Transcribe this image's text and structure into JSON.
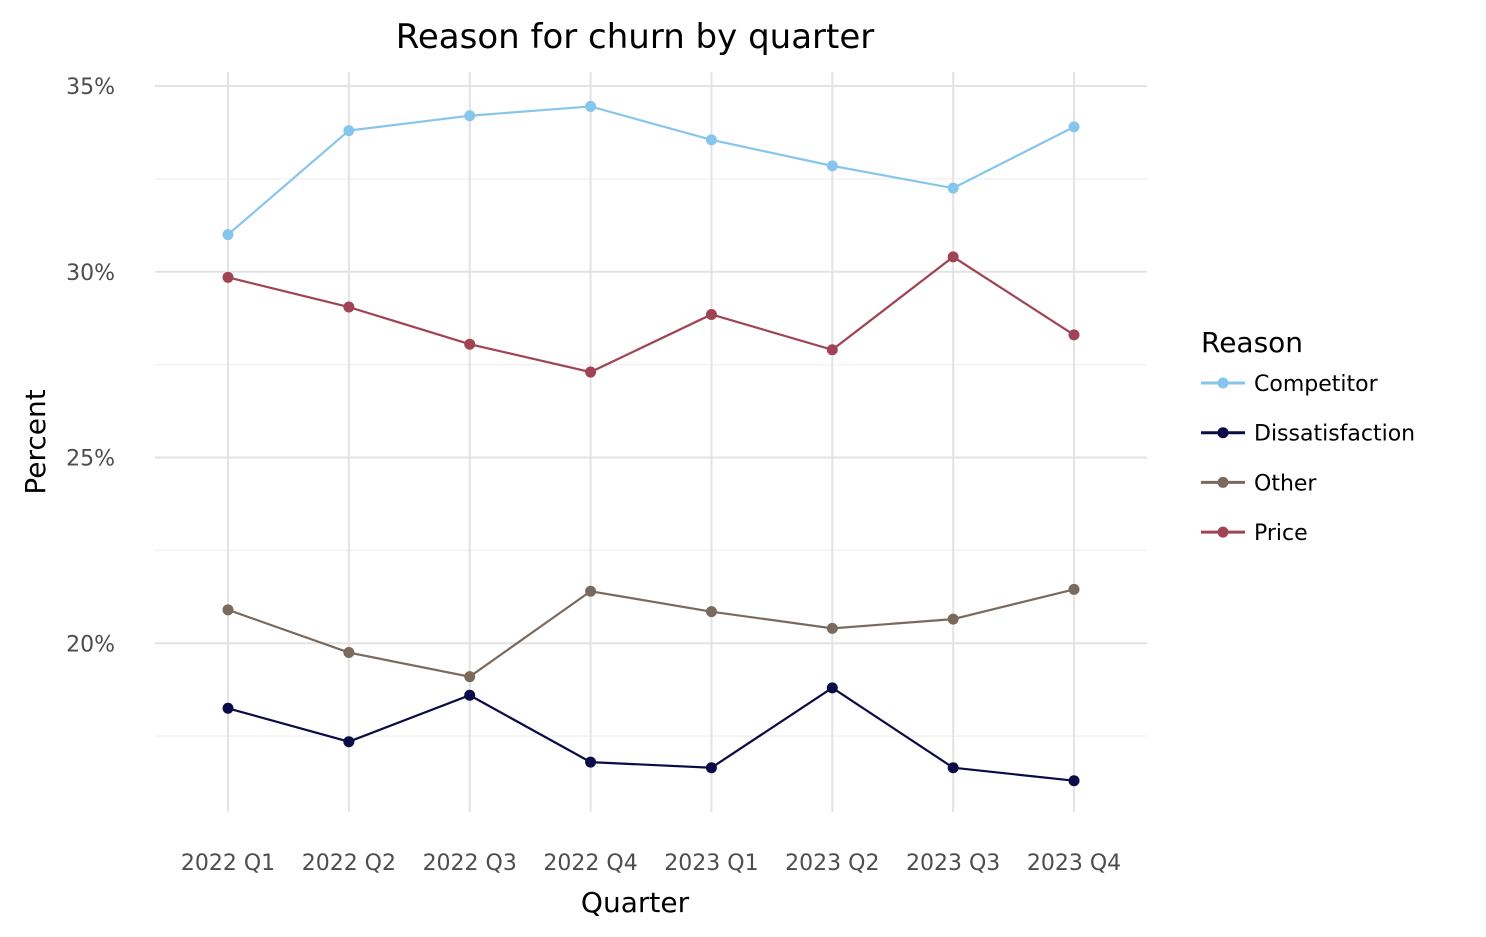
{
  "chart_data": {
    "type": "line",
    "title": "Reason for churn by quarter",
    "xlabel": "Quarter",
    "ylabel": "Percent",
    "categories": [
      "2022 Q1",
      "2022 Q2",
      "2022 Q3",
      "2022 Q4",
      "2023 Q1",
      "2023 Q2",
      "2023 Q3",
      "2023 Q4"
    ],
    "y_ticks": [
      20,
      25,
      30,
      35
    ],
    "y_tick_labels": [
      "20%",
      "25%",
      "30%",
      "35%"
    ],
    "ylim": [
      15.2,
      35.35
    ],
    "grid": true,
    "legend": {
      "title": "Reason",
      "placement": "right"
    },
    "series": [
      {
        "name": "Competitor",
        "color": "#87c6ec",
        "values": [
          31.0,
          33.8,
          34.2,
          34.45,
          33.55,
          32.85,
          32.25,
          33.9
        ]
      },
      {
        "name": "Dissatisfaction",
        "color": "#0b0b45",
        "values": [
          18.25,
          17.35,
          18.6,
          16.8,
          16.65,
          18.8,
          16.65,
          16.3
        ]
      },
      {
        "name": "Other",
        "color": "#7a6a5d",
        "values": [
          20.9,
          19.75,
          19.1,
          21.4,
          20.85,
          20.4,
          20.65,
          21.45
        ]
      },
      {
        "name": "Price",
        "color": "#a04455",
        "values": [
          29.85,
          29.05,
          28.05,
          27.3,
          28.85,
          27.9,
          30.4,
          28.3
        ]
      }
    ]
  }
}
